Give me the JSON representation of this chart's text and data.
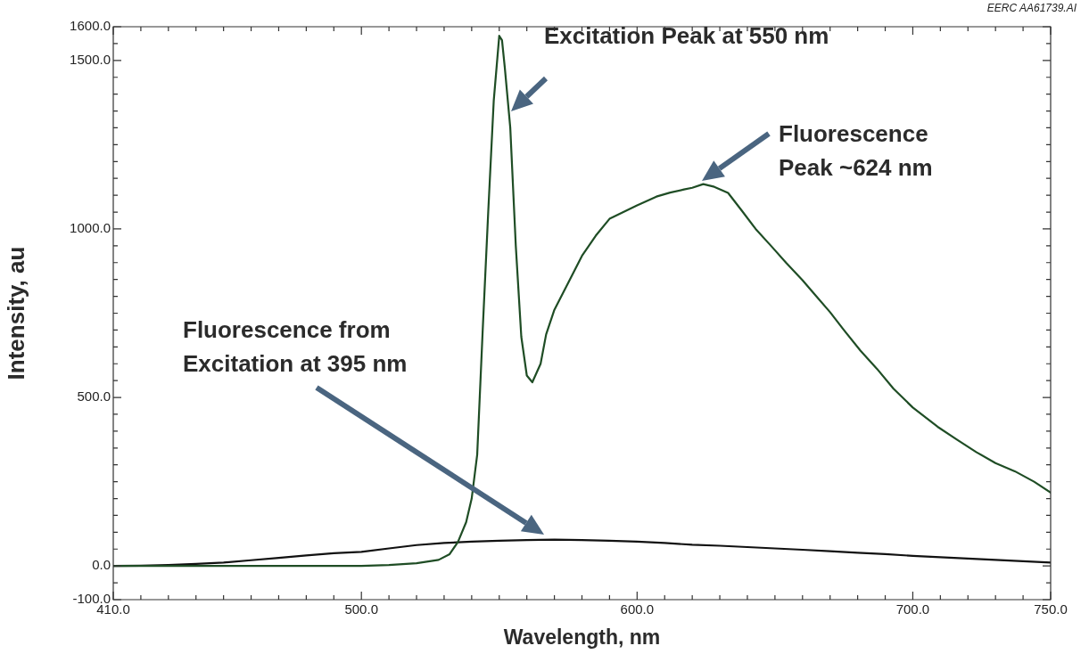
{
  "chart_data": {
    "type": "line",
    "xlabel": "Wavelength, nm",
    "ylabel": "Intensity, au",
    "marker": "none",
    "line_style": "solid",
    "grid": false,
    "legend": false,
    "xlim": [
      410,
      750
    ],
    "ylim": [
      -100,
      1600
    ],
    "xticks": [
      {
        "value": 410,
        "label": "410.0"
      },
      {
        "value": 420,
        "label": null
      },
      {
        "value": 430,
        "label": null
      },
      {
        "value": 440,
        "label": null
      },
      {
        "value": 450,
        "label": null
      },
      {
        "value": 460,
        "label": null
      },
      {
        "value": 470,
        "label": null
      },
      {
        "value": 480,
        "label": null
      },
      {
        "value": 490,
        "label": null
      },
      {
        "value": 500,
        "label": "500.0"
      },
      {
        "value": 510,
        "label": null
      },
      {
        "value": 520,
        "label": null
      },
      {
        "value": 530,
        "label": null
      },
      {
        "value": 540,
        "label": null
      },
      {
        "value": 550,
        "label": null
      },
      {
        "value": 560,
        "label": null
      },
      {
        "value": 570,
        "label": null
      },
      {
        "value": 580,
        "label": null
      },
      {
        "value": 590,
        "label": null
      },
      {
        "value": 600,
        "label": "600.0"
      },
      {
        "value": 610,
        "label": null
      },
      {
        "value": 620,
        "label": null
      },
      {
        "value": 630,
        "label": null
      },
      {
        "value": 640,
        "label": null
      },
      {
        "value": 650,
        "label": null
      },
      {
        "value": 660,
        "label": null
      },
      {
        "value": 670,
        "label": null
      },
      {
        "value": 680,
        "label": null
      },
      {
        "value": 690,
        "label": null
      },
      {
        "value": 700,
        "label": "700.0"
      },
      {
        "value": 710,
        "label": null
      },
      {
        "value": 720,
        "label": null
      },
      {
        "value": 730,
        "label": null
      },
      {
        "value": 740,
        "label": null
      },
      {
        "value": 750,
        "label": "750.0"
      }
    ],
    "yticks": [
      {
        "value": -100,
        "label": "-100.0"
      },
      {
        "value": -50,
        "label": null
      },
      {
        "value": 0,
        "label": "0.0"
      },
      {
        "value": 50,
        "label": null
      },
      {
        "value": 100,
        "label": null
      },
      {
        "value": 150,
        "label": null
      },
      {
        "value": 200,
        "label": null
      },
      {
        "value": 250,
        "label": null
      },
      {
        "value": 300,
        "label": null
      },
      {
        "value": 350,
        "label": null
      },
      {
        "value": 400,
        "label": null
      },
      {
        "value": 450,
        "label": null
      },
      {
        "value": 500,
        "label": "500.0"
      },
      {
        "value": 550,
        "label": null
      },
      {
        "value": 600,
        "label": null
      },
      {
        "value": 650,
        "label": null
      },
      {
        "value": 700,
        "label": null
      },
      {
        "value": 750,
        "label": null
      },
      {
        "value": 800,
        "label": null
      },
      {
        "value": 850,
        "label": null
      },
      {
        "value": 900,
        "label": null
      },
      {
        "value": 950,
        "label": null
      },
      {
        "value": 1000,
        "label": "1000.0"
      },
      {
        "value": 1050,
        "label": null
      },
      {
        "value": 1100,
        "label": null
      },
      {
        "value": 1150,
        "label": null
      },
      {
        "value": 1200,
        "label": null
      },
      {
        "value": 1250,
        "label": null
      },
      {
        "value": 1300,
        "label": null
      },
      {
        "value": 1350,
        "label": null
      },
      {
        "value": 1400,
        "label": null
      },
      {
        "value": 1450,
        "label": null
      },
      {
        "value": 1500,
        "label": "1500.0"
      },
      {
        "value": 1550,
        "label": null
      },
      {
        "value": 1600,
        "label": "1600.0"
      }
    ],
    "series": [
      {
        "color": "#1f4d25",
        "x": [
          410,
          450,
          500,
          510,
          520,
          528,
          532,
          535,
          538,
          540,
          542,
          544,
          546,
          548,
          550,
          551,
          552,
          554,
          556,
          558,
          560,
          562,
          565,
          567,
          570,
          575,
          580,
          585,
          590,
          596,
          600,
          607,
          612,
          617,
          620,
          624,
          628,
          633,
          638,
          643,
          649,
          654,
          660,
          665,
          670,
          675,
          681,
          687,
          693,
          700,
          709,
          716,
          723,
          730,
          737,
          744,
          750
        ],
        "values": [
          0,
          0,
          0,
          3,
          8,
          18,
          35,
          71,
          130,
          200,
          330,
          700,
          1050,
          1380,
          1573,
          1560,
          1480,
          1300,
          950,
          680,
          565,
          545,
          600,
          687,
          760,
          840,
          920,
          980,
          1030,
          1054,
          1070,
          1096,
          1108,
          1117,
          1122,
          1133,
          1125,
          1107,
          1054,
          1000,
          946,
          900,
          848,
          800,
          753,
          700,
          639,
          585,
          526,
          470,
          413,
          375,
          338,
          305,
          281,
          250,
          218
        ]
      },
      {
        "color": "#111111",
        "x": [
          410,
          420,
          430,
          440,
          450,
          460,
          470,
          480,
          490,
          500,
          510,
          520,
          530,
          540,
          550,
          560,
          570,
          580,
          590,
          600,
          610,
          620,
          630,
          640,
          650,
          660,
          670,
          680,
          690,
          700,
          710,
          720,
          730,
          740,
          750
        ],
        "values": [
          0,
          1,
          3,
          6,
          10,
          17,
          24,
          31,
          38,
          42,
          52,
          62,
          68,
          72,
          75,
          77,
          78,
          77,
          75,
          72,
          68,
          63,
          60,
          56,
          52,
          48,
          44,
          39,
          35,
          30,
          26,
          22,
          18,
          14,
          10
        ]
      }
    ],
    "annotations": [
      "Excitation Peak at 550 nm",
      "Fluorescence\nPeak ~624 nm",
      "Fluorescence from\nExcitation at 395 nm",
      "EERC AA61739.AI"
    ]
  }
}
